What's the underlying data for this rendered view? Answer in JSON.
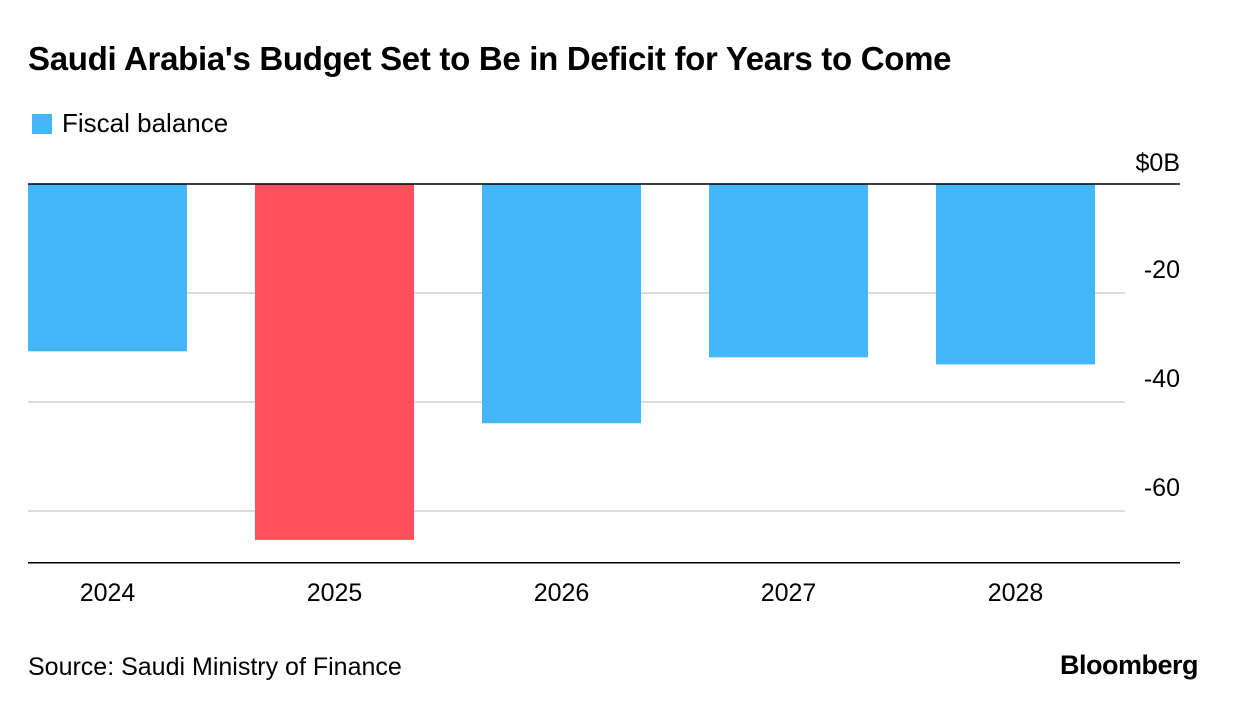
{
  "chart_data": {
    "type": "bar",
    "title": "Saudi Arabia's Budget Set to Be in Deficit for Years to Come",
    "categories": [
      "2024",
      "2025",
      "2026",
      "2027",
      "2028"
    ],
    "series": [
      {
        "name": "Fiscal balance",
        "values": [
          -30.7,
          -65.3,
          -43.9,
          -31.8,
          -33.1
        ]
      }
    ],
    "highlight_index": 1,
    "colors": {
      "series": "#44b6fa",
      "highlight": "#ff505b"
    },
    "ylim": [
      -69.5,
      0
    ],
    "yticks": [
      0,
      -20,
      -40,
      -60
    ],
    "ytick_labels": [
      "$0B",
      "-20",
      "-40",
      "-60"
    ],
    "y_axis_position": "right",
    "grid": true,
    "legend": "top-left",
    "xlabel": "",
    "ylabel": ""
  },
  "source": "Source: Saudi Ministry of Finance",
  "logo": "Bloomberg"
}
